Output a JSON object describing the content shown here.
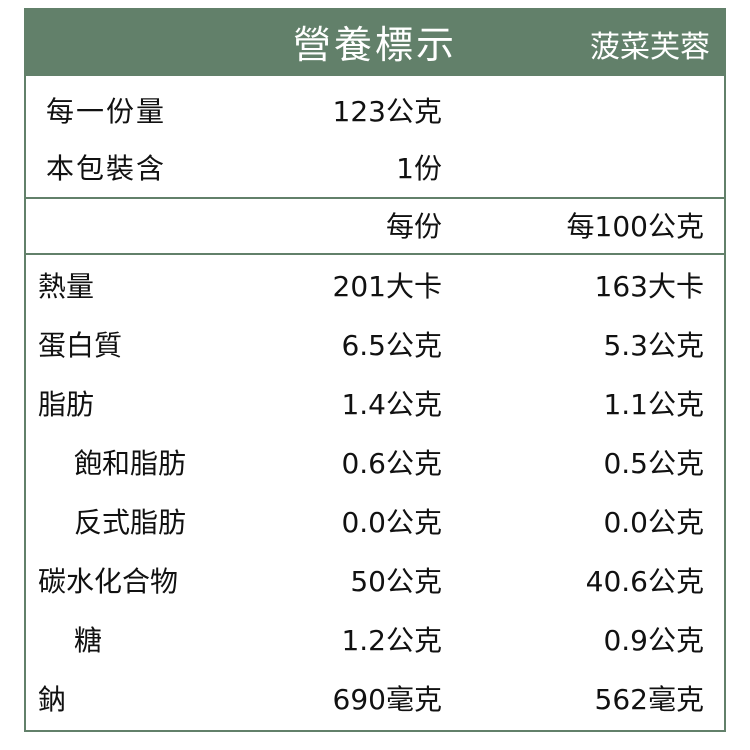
{
  "header": {
    "title": "營養標示",
    "product": "菠菜芙蓉"
  },
  "serving": [
    [
      "每一份量",
      "123公克"
    ],
    [
      "本包裝含",
      "1份"
    ]
  ],
  "table": {
    "columns": [
      "每份",
      "每100公克"
    ],
    "rows": [
      {
        "label": "熱量",
        "indent": false,
        "cells": [
          "201大卡",
          "163大卡"
        ]
      },
      {
        "label": "蛋白質",
        "indent": false,
        "cells": [
          "6.5公克",
          "5.3公克"
        ]
      },
      {
        "label": "脂肪",
        "indent": false,
        "cells": [
          "1.4公克",
          "1.1公克"
        ]
      },
      {
        "label": "飽和脂肪",
        "indent": true,
        "cells": [
          "0.6公克",
          "0.5公克"
        ]
      },
      {
        "label": "反式脂肪",
        "indent": true,
        "cells": [
          "0.0公克",
          "0.0公克"
        ]
      },
      {
        "label": "碳水化合物",
        "indent": false,
        "cells": [
          "50公克",
          "40.6公克"
        ]
      },
      {
        "label": "糖",
        "indent": true,
        "cells": [
          "1.2公克",
          "0.9公克"
        ]
      },
      {
        "label": "鈉",
        "indent": false,
        "cells": [
          "690毫克",
          "562毫克"
        ]
      }
    ]
  }
}
